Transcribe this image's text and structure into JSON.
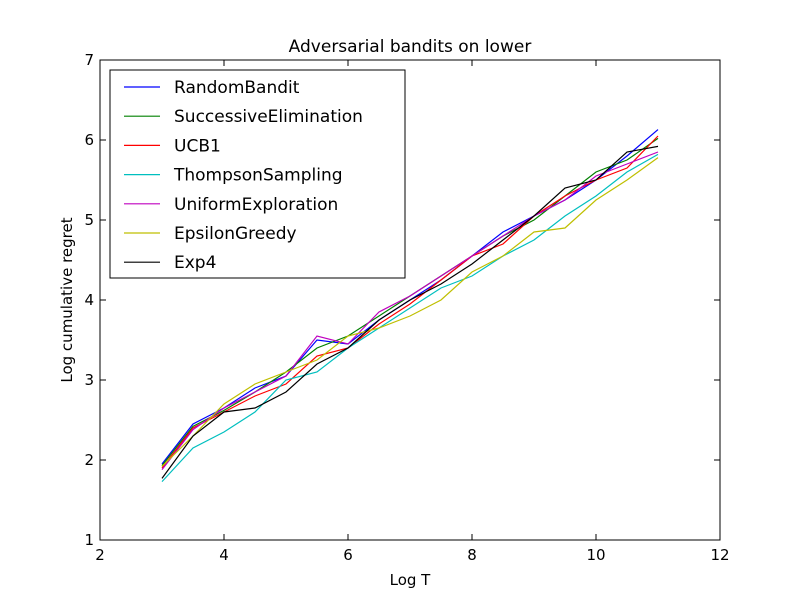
{
  "chart_data": {
    "type": "line",
    "title": "Adversarial bandits on lower",
    "xlabel": "Log T",
    "ylabel": "Log cumulative regret",
    "xlim": [
      2,
      12
    ],
    "ylim": [
      1,
      7
    ],
    "xticks": [
      "2",
      "4",
      "6",
      "8",
      "10",
      "12"
    ],
    "yticks": [
      "1",
      "2",
      "3",
      "4",
      "5",
      "6",
      "7"
    ],
    "grid": false,
    "legend_position": "top-left",
    "x": [
      3.0,
      3.5,
      4.0,
      4.5,
      5.0,
      5.5,
      6.0,
      6.5,
      7.0,
      7.5,
      8.0,
      8.5,
      9.0,
      9.5,
      10.0,
      10.5,
      11.0
    ],
    "series": [
      {
        "name": "RandomBandit",
        "color": "#0000ff",
        "values": [
          1.95,
          2.45,
          2.65,
          2.9,
          3.05,
          3.5,
          3.45,
          3.75,
          4.0,
          4.25,
          4.55,
          4.85,
          5.05,
          5.25,
          5.5,
          5.8,
          6.13
        ]
      },
      {
        "name": "SuccessiveElimination",
        "color": "#008000",
        "values": [
          1.93,
          2.42,
          2.62,
          2.85,
          3.1,
          3.4,
          3.55,
          3.8,
          4.05,
          4.3,
          4.55,
          4.8,
          5.0,
          5.3,
          5.6,
          5.75,
          6.02
        ]
      },
      {
        "name": "UCB1",
        "color": "#ff0000",
        "values": [
          1.9,
          2.4,
          2.6,
          2.8,
          2.95,
          3.3,
          3.4,
          3.7,
          3.95,
          4.25,
          4.55,
          4.7,
          5.05,
          5.3,
          5.5,
          5.65,
          6.05
        ]
      },
      {
        "name": "ThompsonSampling",
        "color": "#00bfbf",
        "values": [
          1.73,
          2.15,
          2.35,
          2.6,
          3.0,
          3.1,
          3.4,
          3.65,
          3.9,
          4.15,
          4.3,
          4.55,
          4.75,
          5.05,
          5.3,
          5.6,
          5.82
        ]
      },
      {
        "name": "UniformExploration",
        "color": "#bf00bf",
        "values": [
          1.88,
          2.38,
          2.65,
          2.85,
          3.05,
          3.55,
          3.45,
          3.85,
          4.05,
          4.3,
          4.55,
          4.8,
          5.05,
          5.25,
          5.55,
          5.7,
          5.85
        ]
      },
      {
        "name": "EpsilonGreedy",
        "color": "#bfbf00",
        "values": [
          1.92,
          2.3,
          2.7,
          2.95,
          3.1,
          3.25,
          3.55,
          3.65,
          3.8,
          4.0,
          4.35,
          4.55,
          4.85,
          4.9,
          5.25,
          5.5,
          5.78
        ]
      },
      {
        "name": "Exp4",
        "color": "#000000",
        "values": [
          1.77,
          2.3,
          2.6,
          2.65,
          2.85,
          3.2,
          3.4,
          3.75,
          4.0,
          4.2,
          4.45,
          4.75,
          5.05,
          5.4,
          5.5,
          5.85,
          5.92
        ]
      }
    ]
  }
}
